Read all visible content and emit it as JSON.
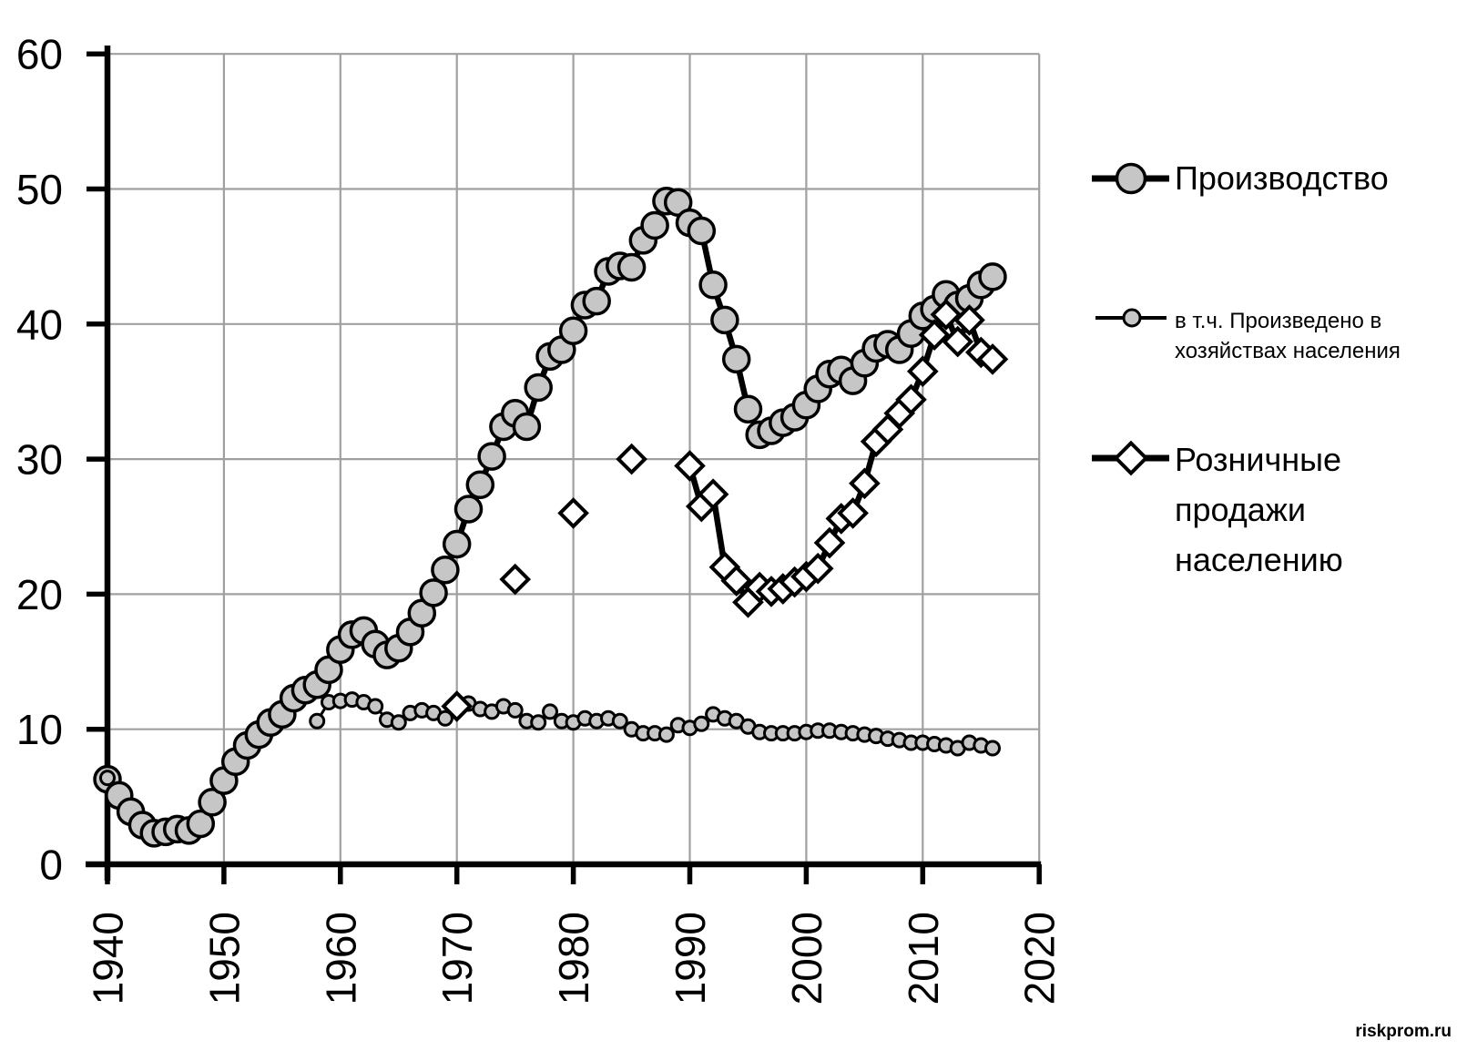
{
  "watermark": "riskprom.ru",
  "colors": {
    "background": "#ffffff",
    "axis": "#000000",
    "grid": "#a0a0a0",
    "line": "#000000",
    "gray_marker_fill": "#c6c6c6",
    "white_marker_fill": "#ffffff",
    "text": "#000000"
  },
  "legend": {
    "items": [
      {
        "label": "Производство",
        "marker": "large-gray-circle"
      },
      {
        "label": "в т.ч. Произведено в хозяйствах населения",
        "label_lines": [
          "в т.ч. Произведено в",
          "хозяйствах населения"
        ],
        "marker": "small-gray-circle"
      },
      {
        "label": "Розничные продажи населению",
        "label_lines": [
          "Розничные",
          "продажи",
          "населению"
        ],
        "marker": "white-diamond"
      }
    ]
  },
  "chart_data": {
    "type": "line",
    "title": "",
    "xlabel": "",
    "ylabel": "",
    "xlim": [
      1940,
      2020
    ],
    "ylim": [
      0,
      60
    ],
    "x_ticks": [
      1940,
      1950,
      1960,
      1970,
      1980,
      1990,
      2000,
      2010,
      2020
    ],
    "y_ticks": [
      0,
      10,
      20,
      30,
      40,
      50,
      60
    ],
    "grid": true,
    "legend_position": "right",
    "series": [
      {
        "name": "Производство",
        "marker": "circle",
        "marker_size": "large",
        "segments": [
          {
            "x": [
              1940,
              1941,
              1942,
              1943,
              1944,
              1945,
              1946,
              1947,
              1948,
              1949,
              1950,
              1951,
              1952,
              1953,
              1954,
              1955,
              1956,
              1957,
              1958,
              1959,
              1960,
              1961,
              1962,
              1963,
              1964,
              1965,
              1966,
              1967,
              1968,
              1969,
              1970,
              1971,
              1972,
              1973,
              1974,
              1975,
              1976,
              1977,
              1978,
              1979,
              1980,
              1981,
              1982,
              1983,
              1984,
              1985,
              1986,
              1987,
              1988,
              1989,
              1990,
              1991,
              1992,
              1993,
              1994,
              1995,
              1996,
              1997,
              1998,
              1999,
              2000,
              2001,
              2002,
              2003,
              2004,
              2005,
              2006,
              2007,
              2008,
              2009,
              2010,
              2011,
              2012,
              2013,
              2014,
              2015,
              2016
            ],
            "y": [
              6.3,
              5.1,
              3.9,
              2.9,
              2.3,
              2.4,
              2.6,
              2.5,
              3.0,
              4.6,
              6.2,
              7.6,
              8.8,
              9.6,
              10.5,
              11.1,
              12.3,
              12.9,
              13.3,
              14.4,
              15.9,
              17.0,
              17.3,
              16.3,
              15.5,
              16.0,
              17.2,
              18.6,
              20.1,
              21.8,
              23.7,
              26.3,
              28.1,
              30.2,
              32.4,
              33.4,
              32.4,
              35.3,
              37.6,
              38.1,
              39.5,
              41.4,
              41.7,
              43.9,
              44.3,
              44.2,
              46.2,
              47.3,
              49.1,
              49.0,
              47.5,
              46.9,
              42.9,
              40.3,
              37.4,
              33.7,
              31.8,
              32.1,
              32.7,
              33.1,
              34.0,
              35.2,
              36.3,
              36.6,
              35.8,
              37.1,
              38.2,
              38.5,
              38.1,
              39.3,
              40.6,
              41.1,
              42.2,
              41.4,
              41.9,
              42.9,
              43.5
            ]
          }
        ]
      },
      {
        "name": "в т.ч. Произведено в хозяйствах населения",
        "marker": "circle",
        "marker_size": "small",
        "segments": [
          {
            "x": [
              1940
            ],
            "y": [
              6.4
            ]
          },
          {
            "x": [
              1958,
              1959,
              1960,
              1961,
              1962,
              1963,
              1964,
              1965,
              1966,
              1967,
              1968,
              1969,
              1970,
              1971,
              1972,
              1973,
              1974,
              1975,
              1976,
              1977,
              1978,
              1979,
              1980,
              1981,
              1982,
              1983,
              1984,
              1985,
              1986,
              1987,
              1988,
              1989,
              1990,
              1991,
              1992,
              1993,
              1994,
              1995,
              1996,
              1997,
              1998,
              1999,
              2000,
              2001,
              2002,
              2003,
              2004,
              2005,
              2006,
              2007,
              2008,
              2009,
              2010,
              2011,
              2012,
              2013,
              2014,
              2015,
              2016
            ],
            "y": [
              10.6,
              12.0,
              12.1,
              12.2,
              12.0,
              11.7,
              10.7,
              10.5,
              11.2,
              11.4,
              11.2,
              10.8,
              11.8,
              11.9,
              11.5,
              11.3,
              11.7,
              11.4,
              10.6,
              10.5,
              11.3,
              10.6,
              10.5,
              10.8,
              10.6,
              10.8,
              10.6,
              10.0,
              9.7,
              9.7,
              9.6,
              10.3,
              10.1,
              10.4,
              11.1,
              10.8,
              10.6,
              10.2,
              9.8,
              9.7,
              9.7,
              9.7,
              9.8,
              9.9,
              9.9,
              9.8,
              9.7,
              9.6,
              9.5,
              9.3,
              9.2,
              9.0,
              9.0,
              8.9,
              8.8,
              8.6,
              9.0,
              8.8,
              8.6
            ]
          }
        ]
      },
      {
        "name": "Розничные продажи населению",
        "marker": "diamond",
        "marker_size": "large",
        "segments": [
          {
            "x": [
              1970
            ],
            "y": [
              11.7
            ]
          },
          {
            "x": [
              1975
            ],
            "y": [
              21.1
            ]
          },
          {
            "x": [
              1980
            ],
            "y": [
              26.0
            ]
          },
          {
            "x": [
              1985
            ],
            "y": [
              30.0
            ]
          },
          {
            "x": [
              1990,
              1991,
              1992,
              1993,
              1994,
              1995,
              1996,
              1997,
              1998,
              1999,
              2000,
              2001,
              2002,
              2003,
              2004,
              2005,
              2006,
              2007,
              2008,
              2009,
              2010,
              2011,
              2012,
              2013,
              2014,
              2015,
              2016
            ],
            "y": [
              29.5,
              26.5,
              27.4,
              22.0,
              21.0,
              19.4,
              20.5,
              20.2,
              20.4,
              20.9,
              21.3,
              21.9,
              23.8,
              25.6,
              26.0,
              28.2,
              31.3,
              32.2,
              33.4,
              34.4,
              36.5,
              39.2,
              40.7,
              38.7,
              40.3,
              37.9,
              37.4
            ]
          }
        ]
      }
    ]
  }
}
